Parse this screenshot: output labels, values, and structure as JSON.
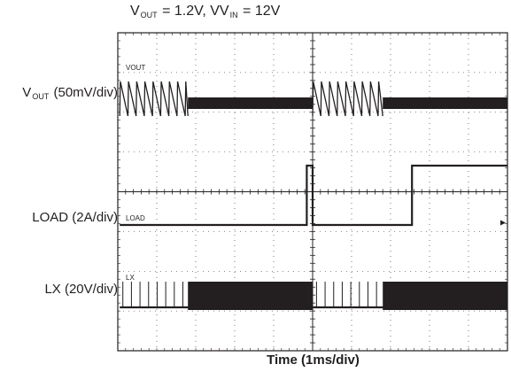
{
  "chart_data": {
    "type": "line",
    "title": {
      "v1": "V",
      "v1_sub": "OUT",
      "v1_rest": " = 1.2V, V",
      "v2_sub": "IN",
      "v2_rest": " = 12V"
    },
    "xlabel": "Time (1ms/div)",
    "grid": {
      "divisions_x": 10,
      "divisions_y": 8,
      "major_subdivisions": 5
    },
    "xlim": [
      0,
      10
    ],
    "traces": [
      {
        "name": "VOUT",
        "axis_label_main": "V",
        "axis_label_sub": "OUT",
        "axis_label_rest": " (50mV/div)",
        "kind": "sawtooth_then_noise",
        "segments": [
          {
            "t_start": 0.05,
            "t_end": 5.0,
            "low_load_end": 1.8
          },
          {
            "t_start": 5.0,
            "t_end": 10.0,
            "low_load_end": 6.8
          }
        ],
        "ramp_period": 0.21
      },
      {
        "name": "LOAD",
        "axis_label_main": "LOAD (2A/div)",
        "kind": "step",
        "levels": [
          {
            "t": 0.05,
            "level": "low"
          },
          {
            "t": 4.9,
            "level": "high"
          },
          {
            "t": 10.0,
            "level": "low"
          }
        ]
      },
      {
        "name": "LX",
        "axis_label_main": "LX (20V/div)",
        "kind": "pulses_then_band",
        "pulse_period": 0.22
      }
    ]
  }
}
